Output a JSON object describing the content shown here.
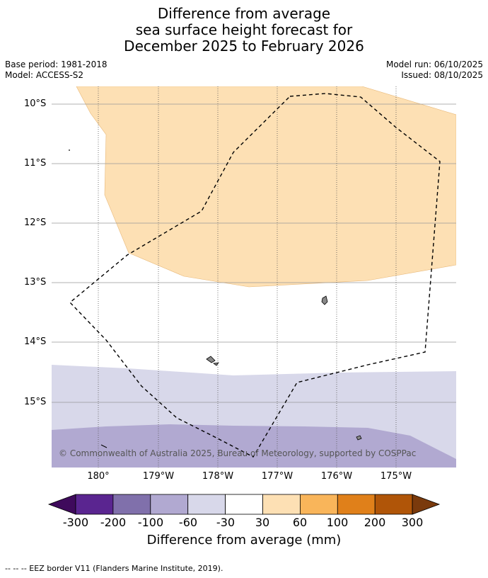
{
  "title": {
    "line1": "Difference from average",
    "line2": "sea surface height forecast for",
    "line3": "December 2025 to February 2026"
  },
  "meta": {
    "base_period": "Base period: 1981-2018",
    "model": "Model: ACCESS-S2",
    "model_run": "Model run: 06/10/2025",
    "issued": "Issued: 08/10/2025"
  },
  "map": {
    "lat_labels": [
      "10°S",
      "11°S",
      "12°S",
      "13°S",
      "14°S",
      "15°S"
    ],
    "lon_labels": [
      "180°",
      "179°W",
      "178°W",
      "177°W",
      "176°W",
      "175°W"
    ],
    "copyright": "© Commonwealth of Australia 2025, Bureau of Meteorology, supported by COSPPac",
    "region_colors": {
      "positive_30_60": "#fde0b4",
      "negative_30_60": "#d8d8ea",
      "negative_60_100": "#b1a9d1"
    }
  },
  "colorbar": {
    "labels": [
      "-300",
      "-200",
      "-100",
      "-60",
      "-30",
      "30",
      "60",
      "100",
      "200",
      "300"
    ],
    "colors": [
      "#3f0a5c",
      "#5a2590",
      "#8070ab",
      "#b1a9d1",
      "#d8d8ea",
      "#ffffff",
      "#fde0b4",
      "#f9b55a",
      "#e0801a",
      "#b05508",
      "#7a3a0c"
    ],
    "title": "Difference from average (mm)"
  },
  "footnote": "--  --  -- EEZ border V11 (Flanders Marine Institute, 2019)."
}
